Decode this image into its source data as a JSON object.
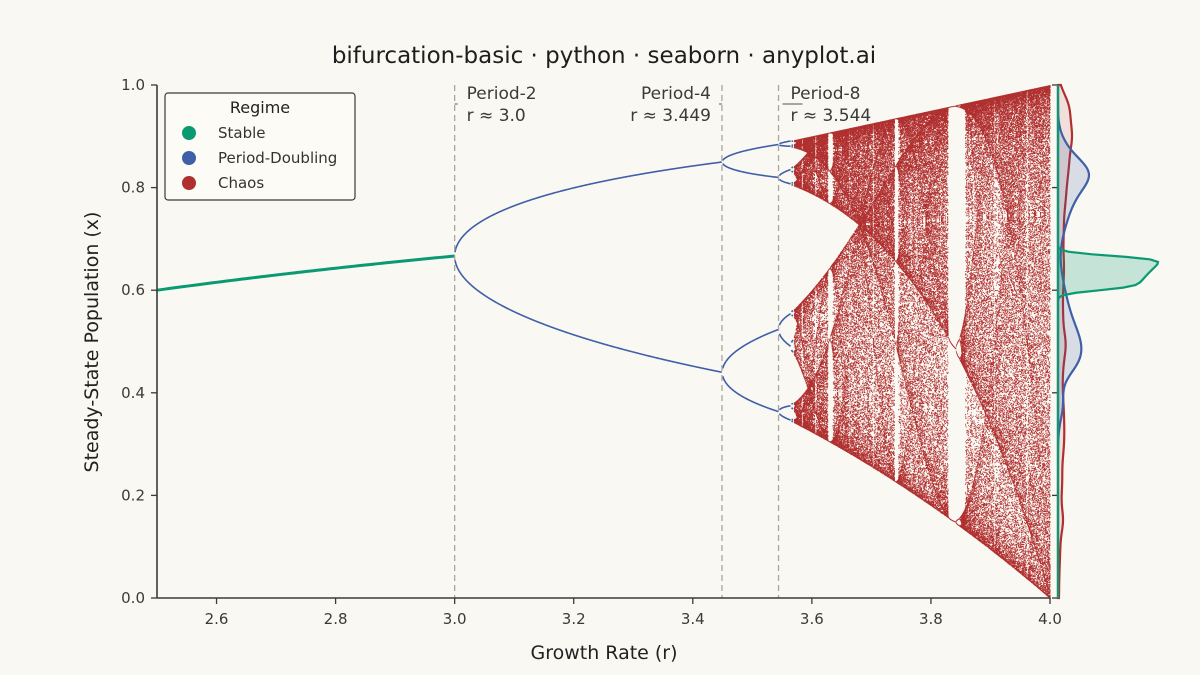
{
  "chart_data": {
    "type": "scatter",
    "title": "bifurcation-basic · python · seaborn · anyplot.ai",
    "xlabel": "Growth Rate (r)",
    "ylabel": "Steady-State Population (x)",
    "xlim": [
      2.5,
      4.0
    ],
    "ylim": [
      0.0,
      1.0
    ],
    "x_ticks": [
      "2.6",
      "2.8",
      "3.0",
      "3.2",
      "3.4",
      "3.6",
      "3.8",
      "4.0"
    ],
    "y_ticks": [
      "0.0",
      "0.2",
      "0.4",
      "0.6",
      "0.8",
      "1.0"
    ],
    "grid": false,
    "legend_position": "top-left",
    "legend": {
      "title": "Regime",
      "entries": [
        {
          "name": "Stable",
          "color": "#0a9a72"
        },
        {
          "name": "Period-Doubling",
          "color": "#3f5fa8"
        },
        {
          "name": "Chaos",
          "color": "#b02f2f"
        }
      ]
    },
    "annotations": [
      {
        "x": 3.0,
        "line1": "Period-2",
        "line2": "r ≈ 3.0",
        "align": "left"
      },
      {
        "x": 3.449,
        "line1": "Period-4",
        "line2": "r ≈ 3.449",
        "align": "right"
      },
      {
        "x": 3.544,
        "line1": "Period-8",
        "line2": "r ≈ 3.544",
        "align": "left"
      }
    ],
    "series": [
      {
        "name": "Stable",
        "r_range": [
          2.5,
          3.0
        ],
        "equation": "x = 1 - 1/r"
      },
      {
        "name": "Period-Doubling",
        "r_range": [
          3.0,
          3.5699
        ]
      },
      {
        "name": "Chaos",
        "r_range": [
          3.5699,
          4.0
        ]
      }
    ],
    "marginal_density": "right-side KDE per regime"
  }
}
